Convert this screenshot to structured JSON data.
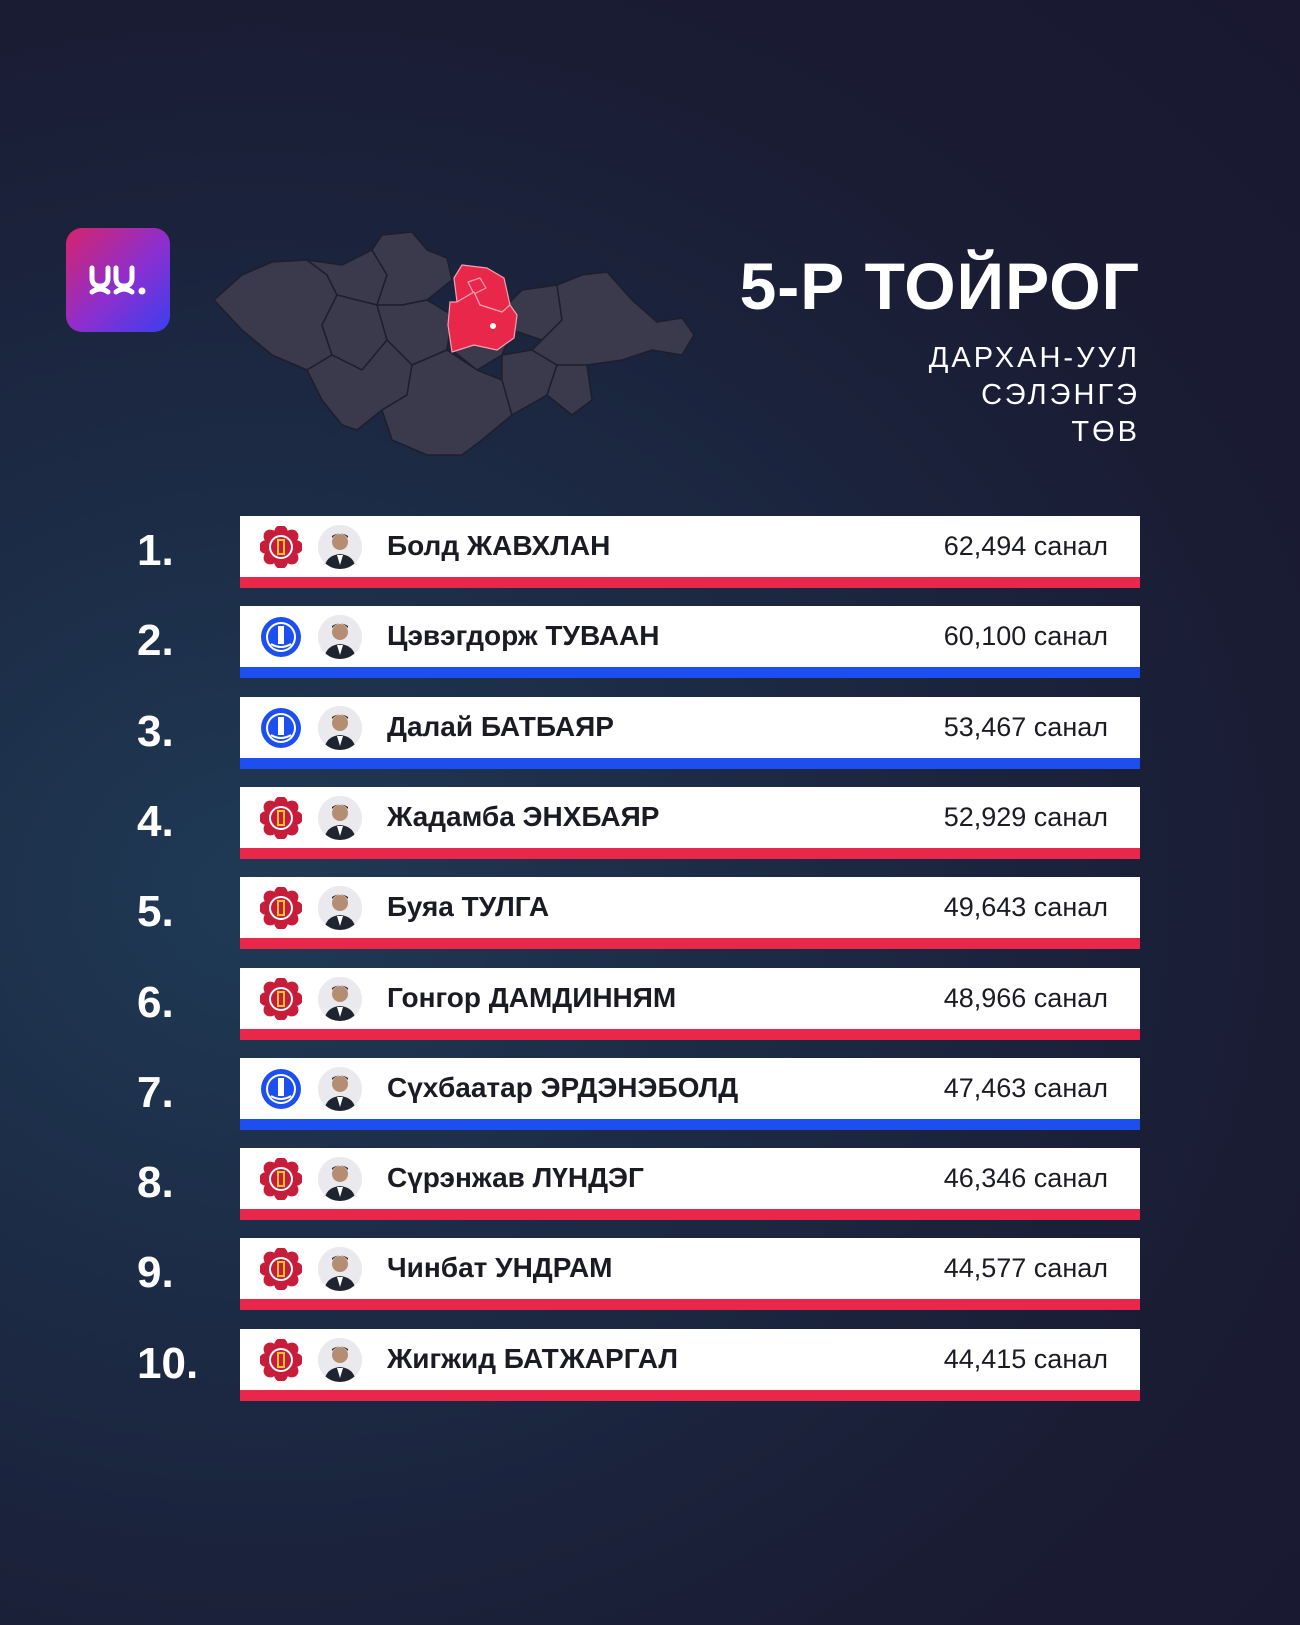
{
  "header": {
    "title": "5-Р ТОЙРОГ",
    "regions": [
      "ДАРХАН-УУЛ",
      "СЭЛЭНГЭ",
      "ТӨВ"
    ]
  },
  "colors": {
    "background": "#1a1c34",
    "map_province": "#3a3a4c",
    "map_highlight": "#e8274a",
    "party_red": "#e8274a",
    "party_blue": "#1d4ff0"
  },
  "candidates": [
    {
      "rank": "1.",
      "name": "Болд ЖАВХЛАН",
      "votes": "62,494 санал",
      "party": "red"
    },
    {
      "rank": "2.",
      "name": "Цэвэгдорж ТУВААН",
      "votes": "60,100 санал",
      "party": "blue"
    },
    {
      "rank": "3.",
      "name": "Далай БАТБАЯР",
      "votes": "53,467 санал",
      "party": "blue"
    },
    {
      "rank": "4.",
      "name": "Жадамба ЭНХБАЯР",
      "votes": "52,929 санал",
      "party": "red"
    },
    {
      "rank": "5.",
      "name": "Буяа ТУЛГА",
      "votes": "49,643 санал",
      "party": "red"
    },
    {
      "rank": "6.",
      "name": "Гонгор ДАМДИННЯМ",
      "votes": "48,966 санал",
      "party": "red"
    },
    {
      "rank": "7.",
      "name": "Сүхбаатар ЭРДЭНЭБОЛД",
      "votes": "47,463 санал",
      "party": "blue"
    },
    {
      "rank": "8.",
      "name": "Сүрэнжав ЛҮНДЭГ",
      "votes": "46,346 санал",
      "party": "red"
    },
    {
      "rank": "9.",
      "name": "Чинбат УНДРАМ",
      "votes": "44,577 санал",
      "party": "red"
    },
    {
      "rank": "10.",
      "name": "Жигжид БАТЖАРГАЛ",
      "votes": "44,415 санал",
      "party": "red"
    }
  ]
}
